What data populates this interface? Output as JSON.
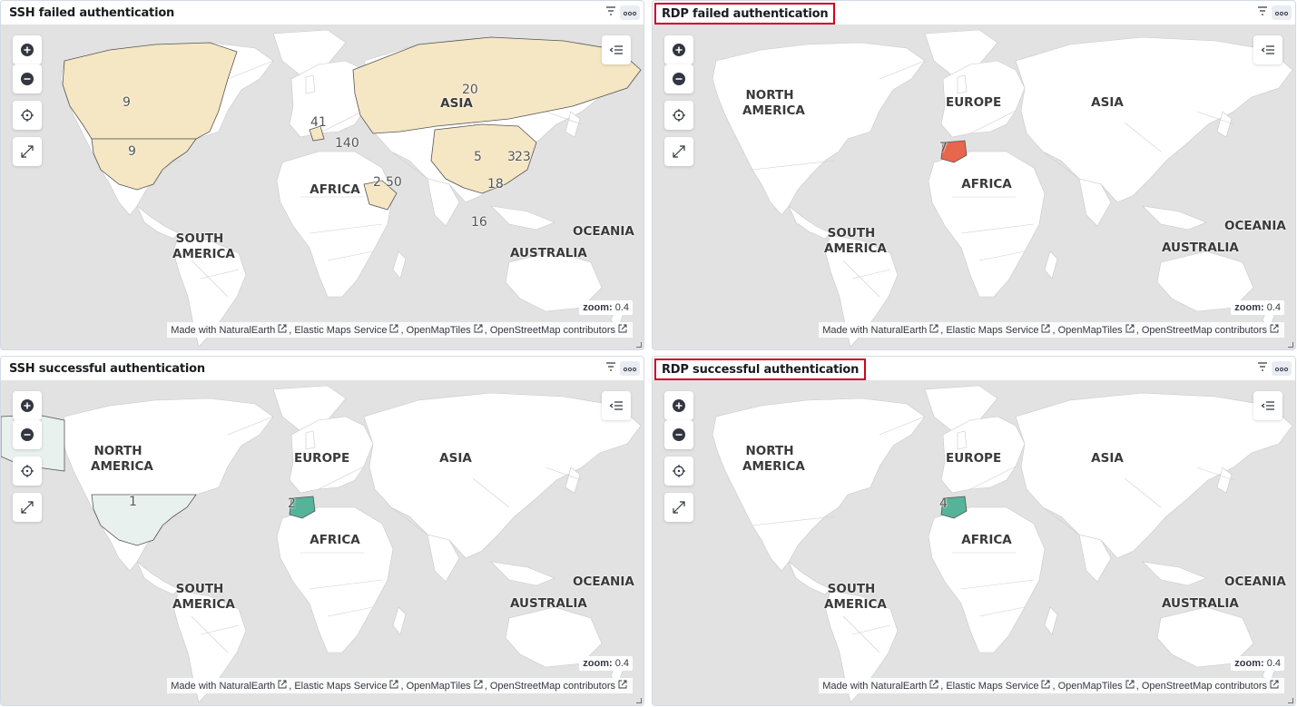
{
  "panels": [
    {
      "title": "SSH failed authentication",
      "highlighted": false,
      "zoom_label": "zoom:",
      "zoom_value": "0.4",
      "region_labels": [
        "AFRICA",
        "SOUTH\nAMERICA",
        "OCEANIA",
        "AUSTRALIA",
        "ASIA"
      ],
      "counts": [
        "9",
        "9",
        "20",
        "41",
        "140",
        "5",
        "3",
        "23",
        "2",
        "50",
        "18",
        "16"
      ]
    },
    {
      "title": "RDP failed authentication",
      "highlighted": true,
      "zoom_label": "zoom:",
      "zoom_value": "0.4",
      "region_labels": [
        "NORTH\nAMERICA",
        "EUROPE",
        "ASIA",
        "AFRICA",
        "SOUTH\nAMERICA",
        "OCEANIA",
        "AUSTRALIA"
      ],
      "counts": [
        "7"
      ]
    },
    {
      "title": "SSH successful authentication",
      "highlighted": false,
      "zoom_label": "zoom:",
      "zoom_value": "0.4",
      "region_labels": [
        "NORTH\nAMERICA",
        "EUROPE",
        "ASIA",
        "AFRICA",
        "SOUTH\nAMERICA",
        "OCEANIA",
        "AUSTRALIA"
      ],
      "counts": [
        "1",
        "2"
      ]
    },
    {
      "title": "RDP successful authentication",
      "highlighted": true,
      "zoom_label": "zoom:",
      "zoom_value": "0.4",
      "region_labels": [
        "NORTH\nAMERICA",
        "EUROPE",
        "ASIA",
        "AFRICA",
        "SOUTH\nAMERICA",
        "OCEANIA",
        "AUSTRALIA"
      ],
      "counts": [
        "4"
      ]
    }
  ],
  "attribution": {
    "items": [
      "Made with NaturalEarth",
      "Elastic Maps Service",
      "OpenMapTiles",
      "OpenStreetMap contributors"
    ],
    "separator": ","
  },
  "icons": {
    "zoom_in": "plus-circle-icon",
    "zoom_out": "minus-circle-icon",
    "locate": "crosshair-icon",
    "fullscreen": "expand-icon",
    "legend": "legend-toggle-icon",
    "filter": "filter-icon",
    "menu": "ellipsis-icon",
    "external": "external-link-icon"
  },
  "colors": {
    "ocean": "#e2e2e2",
    "land": "#ffffff",
    "ssh_failed_fill": "#f5e6c4",
    "rdp_failed_fill": "#e7664c",
    "ssh_success_fill": "#e8f1ee",
    "success_fill": "#54b399",
    "highlight_border": "#d0021b"
  }
}
